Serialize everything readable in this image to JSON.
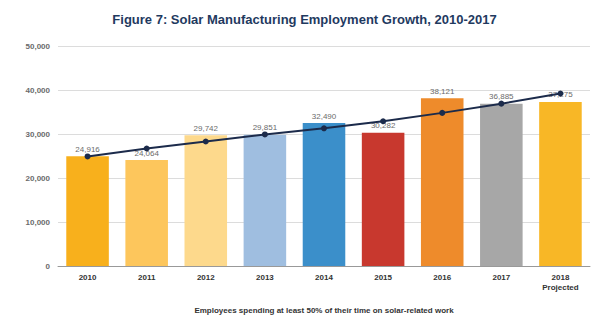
{
  "chart_data": {
    "type": "bar",
    "title": "Figure 7: Solar Manufacturing Employment Growth, 2010-2017",
    "x_label": "Employees spending at least 50% of their time on solar-related work",
    "categories": [
      "2010",
      "2011",
      "2012",
      "2013",
      "2014",
      "2015",
      "2016",
      "2017",
      "2018\nProjected"
    ],
    "series": [
      {
        "type": "bar",
        "values": [
          24916,
          24064,
          29742,
          29851,
          32490,
          30282,
          38121,
          36885,
          37275
        ],
        "value_labels": [
          "24,916",
          "24,064",
          "29,742",
          "29,851",
          "32,490",
          "30,282",
          "38,121",
          "36,885",
          "37,275"
        ],
        "colors": [
          "#f8b01c",
          "#fdc65c",
          "#fdd98c",
          "#9fbee0",
          "#3b8fca",
          "#c8382e",
          "#ee8b2b",
          "#a7a7a7",
          "#f8b726"
        ]
      },
      {
        "type": "line",
        "color": "#1c2b4b",
        "marker": "circle",
        "values": [
          24900,
          26700,
          28300,
          29900,
          31300,
          32900,
          34800,
          36900,
          39200
        ]
      }
    ],
    "ylim": [
      0,
      50000
    ],
    "yticks": [
      0,
      {
        "value": 10000,
        "label": "10,000"
      },
      {
        "value": 20000,
        "label": "20,000"
      },
      {
        "value": 30000,
        "label": "30,000"
      },
      {
        "value": 40000,
        "label": "40,000"
      },
      {
        "value": 50000,
        "label": "50,000"
      }
    ],
    "grid": true,
    "data_labels": true
  }
}
